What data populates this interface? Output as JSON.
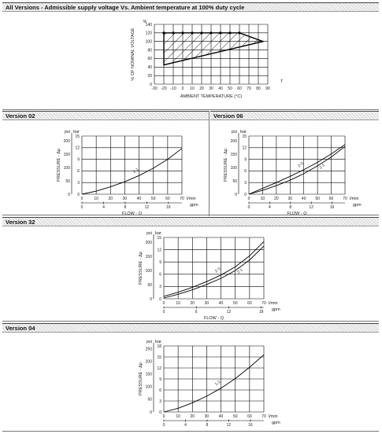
{
  "chart_data": [
    {
      "id": "c0",
      "section_title": "All Versions - Admissible supply voltage Vs. Ambient temperature at 100% duty cycle",
      "type": "area",
      "x_unit": "T",
      "y_unit": "%",
      "xlabel": "AMBIENT TEMPERATURE (°C)",
      "ylabel": "% OF NOMINAL VOLTAGE",
      "xlim": [
        -30,
        90
      ],
      "ylim": [
        0,
        140
      ],
      "x_ticks": [
        "-30",
        "-20",
        "-10",
        "0",
        "10",
        "20",
        "30",
        "40",
        "50",
        "60",
        "70",
        "80",
        "90"
      ],
      "y_ticks": [
        "0",
        "20",
        "40",
        "60",
        "80",
        "100",
        "120",
        "140"
      ],
      "series": [
        {
          "values": [
            [
              -20,
              45
            ],
            [
              -20,
              120
            ],
            [
              60,
              120
            ],
            [
              85,
              100
            ],
            [
              -20,
              45
            ]
          ]
        }
      ],
      "grid": true
    },
    {
      "id": "c1",
      "section_title": "Version 02",
      "type": "line",
      "ylabel": "PRESSURE - Δp",
      "xlabel": "FLOW - Q",
      "y_unit_primary": "bar",
      "y_unit_secondary": "psi",
      "x_unit_primary": "l/min",
      "x_unit_secondary": "gpm",
      "xlim": [
        0,
        70
      ],
      "ylim": [
        0,
        15
      ],
      "x_ticks": [
        "0",
        "10",
        "20",
        "30",
        "40",
        "50",
        "60",
        "70"
      ],
      "x_ticks_secondary": [
        "0",
        "4",
        "8",
        "12",
        "16"
      ],
      "y_ticks": [
        "0",
        "3",
        "6",
        "9",
        "12",
        "15"
      ],
      "y_ticks_secondary": [
        "0",
        "50",
        "100",
        "150",
        "200"
      ],
      "series": [
        {
          "name": "2-1",
          "values": [
            [
              0,
              0
            ],
            [
              10,
              0.8
            ],
            [
              20,
              1.9
            ],
            [
              30,
              3.2
            ],
            [
              40,
              4.8
            ],
            [
              50,
              6.7
            ],
            [
              60,
              9.0
            ],
            [
              70,
              11.8
            ]
          ]
        }
      ],
      "grid": true
    },
    {
      "id": "c2",
      "section_title": "Version 06",
      "type": "line",
      "ylabel": "PRESSURE - Δp",
      "xlabel": "FLOW - Q",
      "y_unit_primary": "bar",
      "y_unit_secondary": "psi",
      "x_unit_primary": "l/min",
      "x_unit_secondary": "gpm",
      "xlim": [
        0,
        70
      ],
      "ylim": [
        0,
        15
      ],
      "x_ticks": [
        "0",
        "10",
        "20",
        "30",
        "40",
        "50",
        "60",
        "70"
      ],
      "x_ticks_secondary": [
        "0",
        "4",
        "8",
        "12",
        "16"
      ],
      "y_ticks": [
        "0",
        "3",
        "6",
        "9",
        "12",
        "15"
      ],
      "y_ticks_secondary": [
        "0",
        "50",
        "100",
        "150",
        "200"
      ],
      "series": [
        {
          "name": "2-3",
          "values": [
            [
              0,
              0
            ],
            [
              10,
              1.5
            ],
            [
              20,
              3.0
            ],
            [
              30,
              4.6
            ],
            [
              40,
              6.3
            ],
            [
              50,
              8.2
            ],
            [
              60,
              10.4
            ],
            [
              70,
              12.8
            ]
          ]
        },
        {
          "name": "2-1",
          "values": [
            [
              0,
              0
            ],
            [
              10,
              1.0
            ],
            [
              20,
              2.2
            ],
            [
              30,
              3.6
            ],
            [
              40,
              5.3
            ],
            [
              50,
              7.3
            ],
            [
              60,
              9.6
            ],
            [
              70,
              12.3
            ]
          ]
        }
      ],
      "grid": true
    },
    {
      "id": "c3",
      "section_title": "Version 32",
      "type": "line",
      "ylabel": "PRESSURE - Δp",
      "xlabel": "FLOW - Q",
      "y_unit_primary": "bar",
      "y_unit_secondary": "psi",
      "x_unit_primary": "l/min",
      "x_unit_secondary": "gpm",
      "xlim": [
        0,
        70
      ],
      "ylim": [
        0,
        15
      ],
      "x_ticks": [
        "0",
        "10",
        "20",
        "30",
        "40",
        "50",
        "60",
        "70"
      ],
      "x_ticks_secondary": [
        "0",
        "6",
        "12",
        "18"
      ],
      "y_ticks": [
        "0",
        "3",
        "6",
        "9",
        "12",
        "15"
      ],
      "y_ticks_secondary": [
        "0",
        "50",
        "100",
        "150",
        "200"
      ],
      "series": [
        {
          "name": "2-3",
          "values": [
            [
              0,
              0.6
            ],
            [
              10,
              1.6
            ],
            [
              20,
              2.8
            ],
            [
              30,
              4.2
            ],
            [
              40,
              5.8
            ],
            [
              50,
              7.8
            ],
            [
              60,
              10.5
            ],
            [
              70,
              14.0
            ]
          ]
        },
        {
          "name": "2-1",
          "values": [
            [
              0,
              0.2
            ],
            [
              10,
              1.1
            ],
            [
              20,
              2.2
            ],
            [
              30,
              3.5
            ],
            [
              40,
              5.0
            ],
            [
              50,
              6.9
            ],
            [
              60,
              9.5
            ],
            [
              70,
              12.9
            ]
          ]
        }
      ],
      "grid": true
    },
    {
      "id": "c4",
      "section_title": "Version 04",
      "type": "line",
      "ylabel": "PRESSURE - Δp",
      "y_unit_primary": "bar",
      "y_unit_secondary": "psi",
      "x_unit_primary": "l/min",
      "x_unit_secondary": "gpm",
      "xlim": [
        0,
        70
      ],
      "ylim": [
        0,
        18
      ],
      "x_ticks": [
        "0",
        "10",
        "20",
        "30",
        "40",
        "50",
        "60",
        "70"
      ],
      "x_ticks_secondary": [
        "0",
        "4",
        "8",
        "12",
        "16"
      ],
      "y_ticks": [
        "0",
        "3",
        "6",
        "9",
        "12",
        "15",
        "18"
      ],
      "y_ticks_secondary": [
        "0",
        "50",
        "100",
        "150",
        "200",
        "250"
      ],
      "series": [
        {
          "name": "1-2",
          "values": [
            [
              0,
              0
            ],
            [
              10,
              1.0
            ],
            [
              20,
              2.5
            ],
            [
              30,
              4.3
            ],
            [
              40,
              6.5
            ],
            [
              50,
              9.1
            ],
            [
              60,
              12.2
            ],
            [
              70,
              15.6
            ]
          ]
        }
      ],
      "grid": true
    }
  ]
}
